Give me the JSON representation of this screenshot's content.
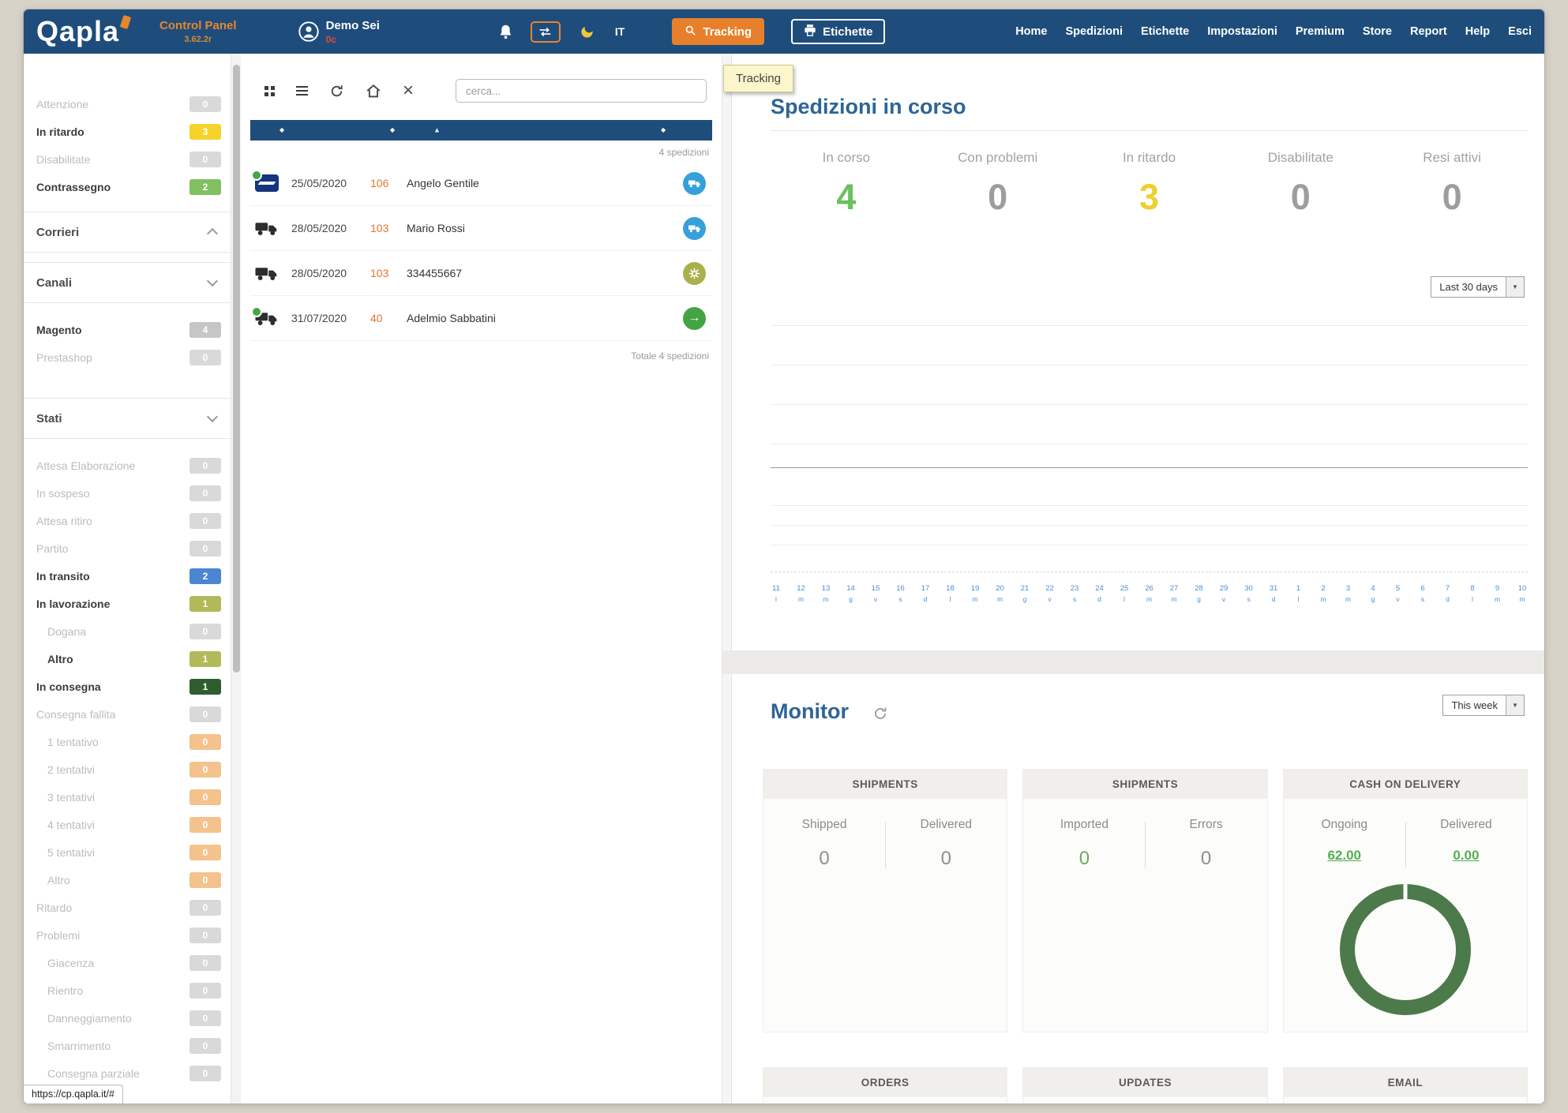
{
  "frame": {
    "status_url": "https://cp.qapla.it/#"
  },
  "colors": {
    "navbar_blue": "#1e4d7c",
    "accent_orange": "#e8802b",
    "heading_blue": "#2d6595",
    "green": "#6bbf5f",
    "yellow": "#eed02e",
    "gray": "#9d9d9d",
    "donut_green": "#4c7a4b",
    "link_green": "#56ae4e",
    "axis_blue": "#4a90d2"
  },
  "navbar": {
    "logo": "Qapla",
    "control_panel": "Control Panel",
    "version": "3.62.2r",
    "user_name": "Demo Sei",
    "user_credits": "0c",
    "language": "IT",
    "tracking_button": "Tracking",
    "labels_button": "Etichette",
    "tooltip": "Tracking",
    "links": [
      "Home",
      "Spedizioni",
      "Etichette",
      "Impostazioni",
      "Premium",
      "Store",
      "Report",
      "Help",
      "Esci"
    ]
  },
  "sidebar": {
    "top_filters": [
      {
        "label": "Attenzione",
        "count": "0",
        "badge": "gray",
        "muted": true
      },
      {
        "label": "In ritardo",
        "count": "3",
        "badge": "yellow"
      },
      {
        "label": "Disabilitate",
        "count": "0",
        "badge": "gray",
        "muted": true
      },
      {
        "label": "Contrassegno",
        "count": "2",
        "badge": "green"
      }
    ],
    "sections": [
      {
        "label": "Corrieri"
      },
      {
        "label": "Canali"
      },
      {
        "label": "Stati"
      }
    ],
    "channels": [
      {
        "label": "Magento",
        "count": "4",
        "badge": "graydark"
      },
      {
        "label": "Prestashop",
        "count": "0",
        "badge": "gray",
        "muted": true
      }
    ],
    "states": [
      {
        "label": "Attesa Elaborazione",
        "count": "0",
        "badge": "gray",
        "muted": true
      },
      {
        "label": "In sospeso",
        "count": "0",
        "badge": "gray",
        "muted": true
      },
      {
        "label": "Attesa ritiro",
        "count": "0",
        "badge": "gray",
        "muted": true
      },
      {
        "label": "Partito",
        "count": "0",
        "badge": "gray",
        "muted": true
      },
      {
        "label": "In transito",
        "count": "2",
        "badge": "blue"
      },
      {
        "label": "In lavorazione",
        "count": "1",
        "badge": "olive"
      },
      {
        "label": "Dogana",
        "count": "0",
        "badge": "gray",
        "muted": true,
        "indent": true
      },
      {
        "label": "Altro",
        "count": "1",
        "badge": "olive",
        "indent": true
      },
      {
        "label": "In consegna",
        "count": "1",
        "badge": "darkgreen"
      },
      {
        "label": "Consegna fallita",
        "count": "0",
        "badge": "gray",
        "muted": true
      },
      {
        "label": "1 tentativo",
        "count": "0",
        "badge": "peach",
        "muted": true,
        "indent": true
      },
      {
        "label": "2 tentativi",
        "count": "0",
        "badge": "peach",
        "muted": true,
        "indent": true
      },
      {
        "label": "3 tentativi",
        "count": "0",
        "badge": "peach",
        "muted": true,
        "indent": true
      },
      {
        "label": "4 tentativi",
        "count": "0",
        "badge": "peach",
        "muted": true,
        "indent": true
      },
      {
        "label": "5 tentativi",
        "count": "0",
        "badge": "peach",
        "muted": true,
        "indent": true
      },
      {
        "label": "Altro",
        "count": "0",
        "badge": "peach",
        "muted": true,
        "indent": true
      },
      {
        "label": "Ritardo",
        "count": "0",
        "badge": "gray",
        "muted": true
      },
      {
        "label": "Problemi",
        "count": "0",
        "badge": "gray",
        "muted": true
      },
      {
        "label": "Giacenza",
        "count": "0",
        "badge": "gray",
        "muted": true,
        "indent": true
      },
      {
        "label": "Rientro",
        "count": "0",
        "badge": "gray",
        "muted": true,
        "indent": true
      },
      {
        "label": "Danneggiamento",
        "count": "0",
        "badge": "gray",
        "muted": true,
        "indent": true
      },
      {
        "label": "Smarrimento",
        "count": "0",
        "badge": "gray",
        "muted": true,
        "indent": true
      },
      {
        "label": "Consegna parziale",
        "count": "0",
        "badge": "gray",
        "muted": true,
        "indent": true
      }
    ]
  },
  "list_panel": {
    "search_placeholder": "cerca...",
    "count_top": "4 spedizioni",
    "count_bottom": "Totale 4 spedizioni",
    "rows": [
      {
        "carrier": "poste",
        "dot": true,
        "date": "25/05/2020",
        "id": "106",
        "name": "Angelo Gentile",
        "status": "truck-blue"
      },
      {
        "carrier": "truck",
        "dot": false,
        "date": "28/05/2020",
        "id": "103",
        "name": "Mario Rossi",
        "status": "truck-blue"
      },
      {
        "carrier": "truck",
        "dot": false,
        "date": "28/05/2020",
        "id": "103",
        "name": "334455667",
        "status": "gear-olive"
      },
      {
        "carrier": "truck",
        "dot": true,
        "date": "31/07/2020",
        "id": "40",
        "name": "Adelmio Sabbatini",
        "status": "arrow-green"
      }
    ]
  },
  "dashboard": {
    "title": "Spedizioni in corso",
    "range_select": "Last 30 days",
    "stats": [
      {
        "label": "In corso",
        "value": "4",
        "color": "green"
      },
      {
        "label": "Con problemi",
        "value": "0",
        "color": "gray"
      },
      {
        "label": "In ritardo",
        "value": "3",
        "color": "yellow"
      },
      {
        "label": "Disabilitate",
        "value": "0",
        "color": "gray"
      },
      {
        "label": "Resi attivi",
        "value": "0",
        "color": "gray"
      }
    ],
    "axis": [
      {
        "d": "11",
        "w": "l"
      },
      {
        "d": "12",
        "w": "m"
      },
      {
        "d": "13",
        "w": "m"
      },
      {
        "d": "14",
        "w": "g"
      },
      {
        "d": "15",
        "w": "v"
      },
      {
        "d": "16",
        "w": "s"
      },
      {
        "d": "17",
        "w": "d"
      },
      {
        "d": "18",
        "w": "l"
      },
      {
        "d": "19",
        "w": "m"
      },
      {
        "d": "20",
        "w": "m"
      },
      {
        "d": "21",
        "w": "g"
      },
      {
        "d": "22",
        "w": "v"
      },
      {
        "d": "23",
        "w": "s"
      },
      {
        "d": "24",
        "w": "d"
      },
      {
        "d": "25",
        "w": "l"
      },
      {
        "d": "26",
        "w": "m"
      },
      {
        "d": "27",
        "w": "m"
      },
      {
        "d": "28",
        "w": "g"
      },
      {
        "d": "29",
        "w": "v"
      },
      {
        "d": "30",
        "w": "s"
      },
      {
        "d": "31",
        "w": "d"
      },
      {
        "d": "1",
        "w": "l"
      },
      {
        "d": "2",
        "w": "m"
      },
      {
        "d": "3",
        "w": "m"
      },
      {
        "d": "4",
        "w": "g"
      },
      {
        "d": "5",
        "w": "v"
      },
      {
        "d": "6",
        "w": "s"
      },
      {
        "d": "7",
        "w": "d"
      },
      {
        "d": "8",
        "w": "l"
      },
      {
        "d": "9",
        "w": "m"
      },
      {
        "d": "10",
        "w": "m"
      }
    ]
  },
  "monitor": {
    "title": "Monitor",
    "range_select": "This week",
    "cards": [
      {
        "header": "SHIPMENTS",
        "left": {
          "label": "Shipped",
          "value": "0"
        },
        "right": {
          "label": "Delivered",
          "value": "0"
        }
      },
      {
        "header": "SHIPMENTS",
        "left": {
          "label": "Imported",
          "value": "0"
        },
        "right": {
          "label": "Errors",
          "value": "0"
        }
      },
      {
        "header": "CASH ON DELIVERY",
        "left": {
          "label": "Ongoing",
          "value": "62.00"
        },
        "right": {
          "label": "Delivered",
          "value": "0.00"
        }
      }
    ],
    "bottom_cards": [
      "ORDERS",
      "UPDATES",
      "EMAIL"
    ]
  }
}
